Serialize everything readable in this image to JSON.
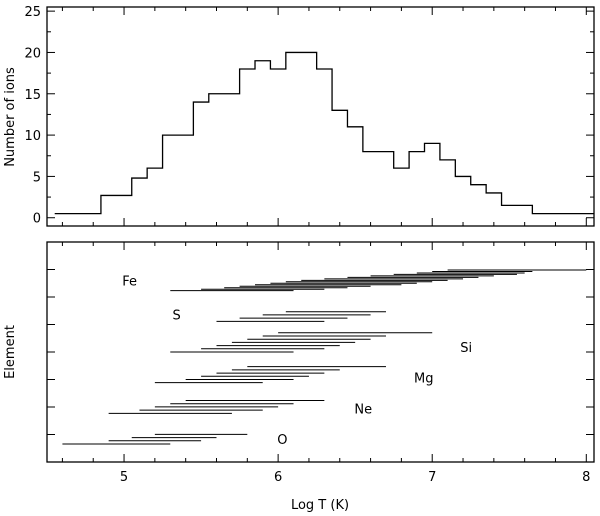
{
  "chart_data": [
    {
      "type": "line",
      "subtype": "step-histogram",
      "title": "",
      "xlabel": "",
      "ylabel": "Number of ions",
      "xlim": [
        4.5,
        8.05
      ],
      "ylim": [
        -1,
        25.5
      ],
      "x_ticks": [
        5,
        6,
        7,
        8
      ],
      "y_ticks": [
        "0",
        "5",
        "10",
        "15",
        "20",
        "25"
      ],
      "y_tick_values": [
        0,
        5,
        10,
        15,
        20,
        25
      ],
      "edges": [
        4.55,
        4.85,
        5.05,
        5.15,
        5.25,
        5.45,
        5.55,
        5.75,
        5.85,
        5.95,
        6.05,
        6.25,
        6.35,
        6.45,
        6.55,
        6.75,
        6.85,
        6.95,
        7.05,
        7.15,
        7.25,
        7.35,
        7.45,
        7.55,
        7.65,
        8.05
      ],
      "values": [
        0.5,
        2.7,
        4.8,
        6.0,
        10.0,
        14.0,
        15.0,
        18.0,
        19.0,
        18.0,
        20.0,
        18.0,
        13.0,
        11.0,
        8.0,
        6.0,
        8.0,
        9.0,
        7.0,
        5.0,
        4.0,
        3.0,
        1.5,
        1.5,
        0.5
      ],
      "grid": false
    },
    {
      "type": "line",
      "subtype": "temperature-ranges",
      "title": "",
      "xlabel": "Log T (K)",
      "ylabel": "Element",
      "xlim": [
        4.5,
        8.05
      ],
      "x_ticks": [
        "5",
        "6",
        "7",
        "8"
      ],
      "x_tick_values": [
        5,
        6,
        7,
        8
      ],
      "grid": false,
      "series": [
        {
          "name": "Fe",
          "ranges": [
            [
              5.3,
              6.1
            ],
            [
              5.5,
              6.3
            ],
            [
              5.65,
              6.45
            ],
            [
              5.75,
              6.6
            ],
            [
              5.85,
              6.8
            ],
            [
              5.95,
              6.9
            ],
            [
              6.05,
              7.0
            ],
            [
              6.15,
              7.1
            ],
            [
              6.3,
              7.2
            ],
            [
              6.45,
              7.3
            ],
            [
              6.6,
              7.4
            ],
            [
              6.75,
              7.55
            ],
            [
              6.9,
              7.6
            ],
            [
              7.0,
              7.65
            ],
            [
              7.1,
              8.0
            ]
          ]
        },
        {
          "name": "S",
          "ranges": [
            [
              5.6,
              6.3
            ],
            [
              5.75,
              6.45
            ],
            [
              5.9,
              6.6
            ],
            [
              6.05,
              6.7
            ]
          ]
        },
        {
          "name": "Si",
          "ranges": [
            [
              5.3,
              6.1
            ],
            [
              5.5,
              6.3
            ],
            [
              5.6,
              6.4
            ],
            [
              5.7,
              6.5
            ],
            [
              5.8,
              6.6
            ],
            [
              5.9,
              6.7
            ],
            [
              6.0,
              7.0
            ]
          ]
        },
        {
          "name": "Mg",
          "ranges": [
            [
              5.2,
              5.9
            ],
            [
              5.4,
              6.1
            ],
            [
              5.5,
              6.2
            ],
            [
              5.6,
              6.3
            ],
            [
              5.7,
              6.4
            ],
            [
              5.8,
              6.7
            ]
          ]
        },
        {
          "name": "Ne",
          "ranges": [
            [
              4.9,
              5.7
            ],
            [
              5.1,
              5.9
            ],
            [
              5.2,
              6.0
            ],
            [
              5.3,
              6.1
            ],
            [
              5.4,
              6.3
            ]
          ]
        },
        {
          "name": "O",
          "ranges": [
            [
              4.6,
              5.3
            ],
            [
              4.9,
              5.5
            ],
            [
              5.05,
              5.6
            ],
            [
              5.2,
              5.8
            ]
          ]
        }
      ]
    }
  ]
}
